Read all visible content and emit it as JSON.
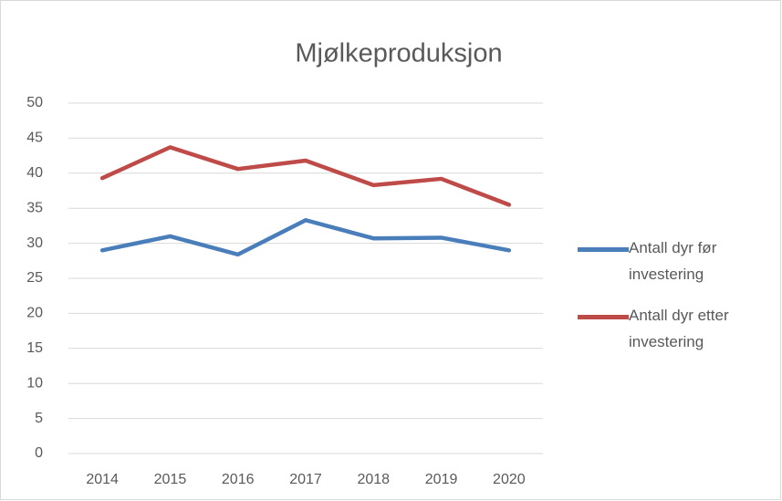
{
  "chart_data": {
    "type": "line",
    "title": "Mjølkeproduksjon",
    "categories": [
      "2014",
      "2015",
      "2016",
      "2017",
      "2018",
      "2019",
      "2020"
    ],
    "series": [
      {
        "name": "Antall dyr før investering",
        "color": "#4a7ebb",
        "values": [
          29.0,
          31.0,
          28.4,
          33.3,
          30.7,
          30.8,
          29.0
        ]
      },
      {
        "name": "Antall dyr etter investering",
        "color": "#be4b48",
        "values": [
          39.3,
          43.7,
          40.6,
          41.8,
          38.3,
          39.2,
          35.5
        ]
      }
    ],
    "ylim": [
      0,
      50
    ],
    "yticks": [
      0,
      5,
      10,
      15,
      20,
      25,
      30,
      35,
      40,
      45,
      50
    ],
    "grid": true,
    "legend": "right"
  }
}
